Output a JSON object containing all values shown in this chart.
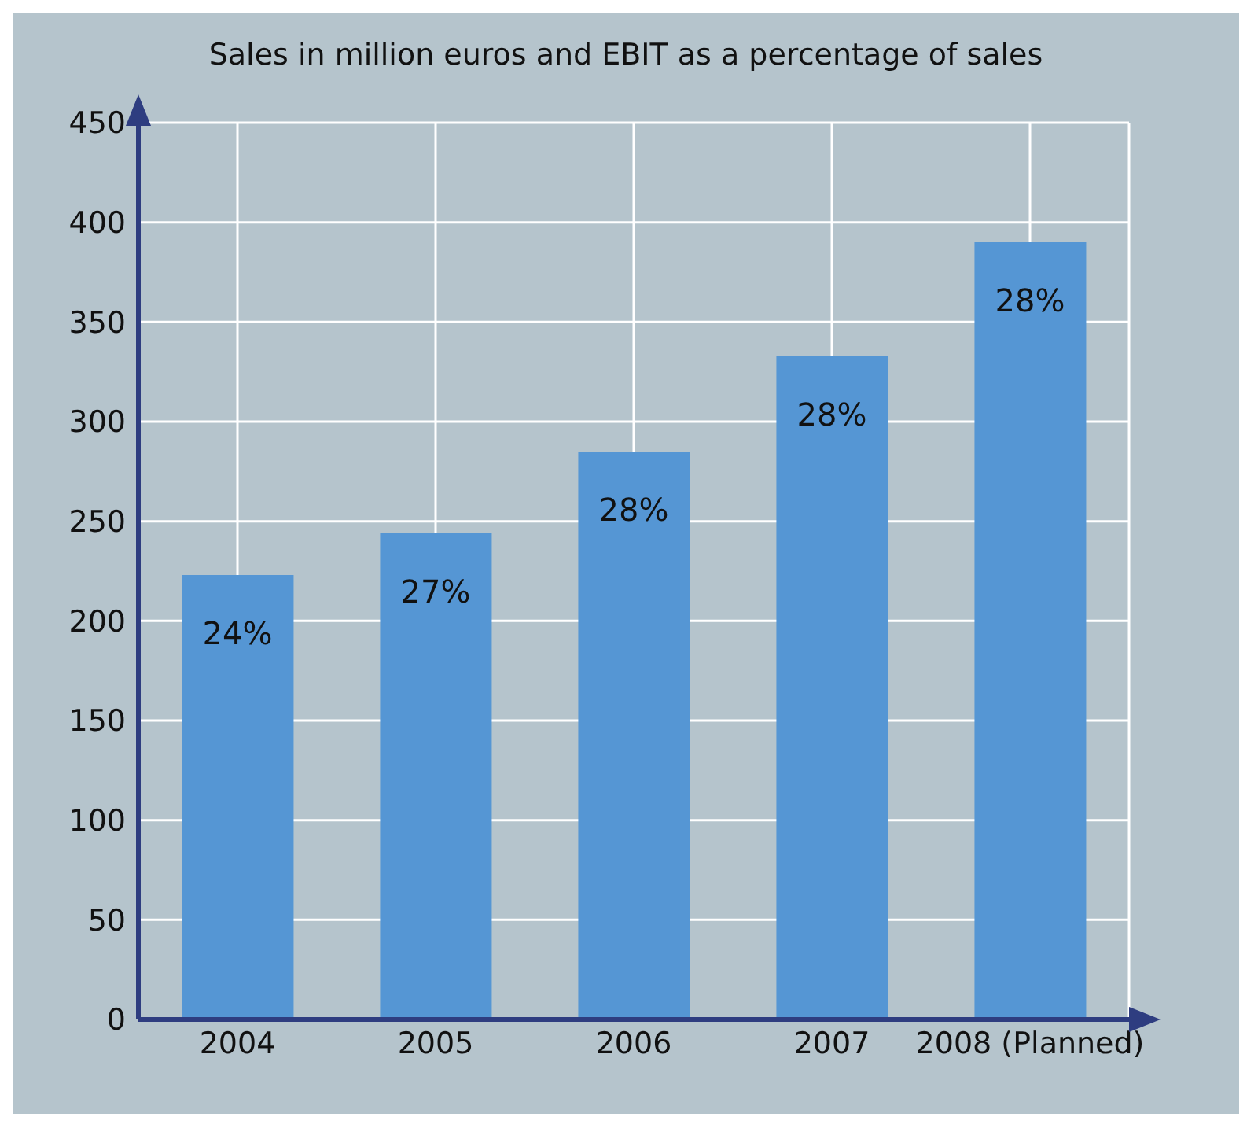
{
  "chart_data": {
    "type": "bar",
    "title": "Sales in million euros and EBIT as a percentage of sales",
    "categories": [
      "2004",
      "2005",
      "2006",
      "2007",
      "2008 (Planned)"
    ],
    "values": [
      223,
      244,
      285,
      333,
      390
    ],
    "annotations": [
      {
        "text": "24%",
        "x": "2004",
        "y": 223
      },
      {
        "text": "27%",
        "x": "2005",
        "y": 244
      },
      {
        "text": "28%",
        "x": "2006",
        "y": 285
      },
      {
        "text": "28%",
        "x": "2007",
        "y": 333
      },
      {
        "text": "28%",
        "x": "2008 (Planned)",
        "y": 390
      }
    ],
    "color": "#5596d4",
    "ylim": [
      0,
      450
    ],
    "yticks": [
      0,
      50,
      100,
      150,
      200,
      250,
      300,
      350,
      400,
      450
    ],
    "grid": true
  }
}
